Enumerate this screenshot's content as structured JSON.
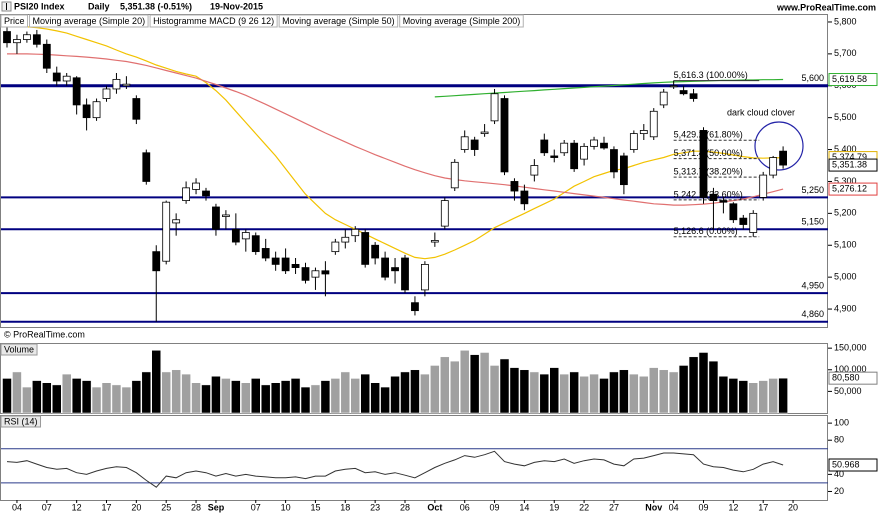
{
  "chart_data": [
    {
      "type": "candlestick",
      "title": "PSI20 Index",
      "period": "Daily",
      "last_quote": "5,351.38 (-0.51%)",
      "date": "19-Nov-2015",
      "source": "www.ProRealTime.com",
      "copyright": "© ProRealTime.com",
      "categories": [
        null,
        "04",
        null,
        null,
        "07",
        null,
        null,
        "12",
        null,
        null,
        "17",
        null,
        null,
        "20",
        null,
        null,
        "25",
        null,
        null,
        "28",
        null,
        "Sep",
        null,
        null,
        null,
        "07",
        null,
        null,
        "10",
        null,
        null,
        "15",
        null,
        null,
        "18",
        null,
        null,
        "23",
        null,
        null,
        "28",
        null,
        null,
        "Oct",
        null,
        null,
        "06",
        null,
        null,
        "09",
        null,
        null,
        "14",
        null,
        null,
        "19",
        null,
        null,
        "22",
        null,
        null,
        "27",
        null,
        null,
        null,
        "Nov",
        null,
        "04",
        null,
        null,
        "09",
        null,
        null,
        "12",
        null,
        null,
        "17",
        null,
        null,
        "20"
      ],
      "price": {
        "name": "Price",
        "up_color": "#ffffff",
        "down_color": "#000000",
        "open": [
          5770,
          5735,
          5745,
          5760,
          5730,
          5640,
          5615,
          5625,
          5540,
          5500,
          5560,
          5590,
          5600,
          5560,
          5390,
          5080,
          5050,
          5170,
          5240,
          5275,
          5270,
          5220,
          5190,
          5150,
          5120,
          5130,
          5090,
          5060,
          5060,
          5040,
          5030,
          5000,
          5020,
          5080,
          5110,
          5130,
          5140,
          5100,
          5060,
          5030,
          5060,
          4920,
          4960,
          5110,
          5160,
          5280,
          5400,
          5430,
          5450,
          5490,
          5560,
          5300,
          5270,
          5320,
          5430,
          5380,
          5390,
          5420,
          5370,
          5410,
          5420,
          5400,
          5380,
          5400,
          5450,
          5440,
          5540,
          5600,
          5585,
          5575,
          5460,
          5260,
          5240,
          5230,
          5185,
          5140,
          5250,
          5320,
          5395,
          null
        ],
        "high": [
          5790,
          5760,
          5770,
          5775,
          5745,
          5660,
          5640,
          5630,
          5560,
          5560,
          5600,
          5640,
          5630,
          5570,
          5400,
          5100,
          5240,
          5200,
          5300,
          5310,
          5280,
          5230,
          5210,
          5200,
          5150,
          5140,
          5120,
          5080,
          5090,
          5060,
          5045,
          5030,
          5050,
          5120,
          5150,
          5160,
          5150,
          5110,
          5080,
          5060,
          5070,
          4940,
          5050,
          5140,
          5250,
          5370,
          5460,
          5440,
          5480,
          5590,
          5570,
          5310,
          5290,
          5370,
          5450,
          5400,
          5430,
          5430,
          5420,
          5440,
          5440,
          5410,
          5390,
          5460,
          5480,
          5530,
          5590,
          5616.3,
          5600,
          5590,
          5470,
          5280,
          5250,
          5235,
          5195,
          5210,
          5330,
          5380,
          5410,
          null
        ],
        "low": [
          5720,
          5700,
          5735,
          5720,
          5640,
          5600,
          5600,
          5510,
          5460,
          5490,
          5550,
          5575,
          5590,
          5480,
          5290,
          4860,
          5040,
          5130,
          5230,
          5260,
          5240,
          5130,
          5150,
          5100,
          5080,
          5070,
          5050,
          5020,
          5010,
          5010,
          4980,
          4960,
          4940,
          5070,
          5090,
          5110,
          5030,
          5040,
          4990,
          4980,
          4950,
          4880,
          4940,
          5095,
          5150,
          5270,
          5390,
          5380,
          5440,
          5480,
          5320,
          5240,
          5210,
          5300,
          5380,
          5360,
          5380,
          5330,
          5350,
          5400,
          5400,
          5310,
          5260,
          5390,
          5430,
          5430,
          5530,
          5590,
          5570,
          5550,
          5230,
          5150,
          5200,
          5170,
          5150,
          5126.6,
          5240,
          5310,
          5340,
          null
        ],
        "close": [
          5735,
          5745,
          5760,
          5730,
          5655,
          5615,
          5630,
          5540,
          5500,
          5550,
          5590,
          5620,
          5605,
          5495,
          5300,
          5020,
          5235,
          5180,
          5280,
          5295,
          5255,
          5150,
          5195,
          5110,
          5140,
          5080,
          5060,
          5040,
          5020,
          5030,
          4990,
          5020,
          5010,
          5110,
          5125,
          5150,
          5040,
          5060,
          5000,
          5020,
          4960,
          4895,
          5040,
          5115,
          5240,
          5360,
          5440,
          5400,
          5455,
          5575,
          5330,
          5270,
          5230,
          5350,
          5390,
          5375,
          5420,
          5340,
          5410,
          5430,
          5405,
          5330,
          5290,
          5450,
          5460,
          5520,
          5580,
          5600,
          5575,
          5560,
          5250,
          5240,
          5235,
          5180,
          5165,
          5200,
          5320,
          5375,
          5351.38,
          null
        ]
      },
      "series": [
        {
          "name": "Moving average (Simple 20)",
          "color": "#f2c200",
          "values": [
            5790,
            5788,
            5785,
            5782,
            5778,
            5772,
            5765,
            5755,
            5745,
            5735,
            5725,
            5712,
            5700,
            5690,
            5678,
            5665,
            5655,
            5645,
            5637,
            5630,
            5610,
            5585,
            5555,
            5520,
            5485,
            5450,
            5415,
            5380,
            5340,
            5300,
            5260,
            5230,
            5200,
            5180,
            5165,
            5150,
            5135,
            5120,
            5105,
            5090,
            5075,
            5062,
            5058,
            5062,
            5072,
            5085,
            5100,
            5115,
            5135,
            5155,
            5170,
            5185,
            5200,
            5215,
            5230,
            5245,
            5265,
            5285,
            5300,
            5315,
            5325,
            5335,
            5340,
            5350,
            5360,
            5368,
            5375,
            5385,
            5390,
            5395,
            5395,
            5392,
            5388,
            5383,
            5378,
            5374,
            5373,
            5374,
            5374.79,
            null
          ]
        },
        {
          "name": "Moving average (Simple 50)",
          "color": "#e07070",
          "values": [
            5700,
            5700,
            5700,
            5699,
            5698,
            5696,
            5694,
            5692,
            5690,
            5687,
            5684,
            5680,
            5676,
            5670,
            5664,
            5656,
            5648,
            5640,
            5632,
            5624,
            5614,
            5604,
            5593,
            5582,
            5570,
            5556,
            5542,
            5527,
            5512,
            5497,
            5482,
            5467,
            5452,
            5438,
            5424,
            5410,
            5397,
            5384,
            5372,
            5360,
            5348,
            5337,
            5327,
            5318,
            5311,
            5306,
            5302,
            5299,
            5296,
            5293,
            5290,
            5286,
            5282,
            5278,
            5274,
            5270,
            5266,
            5262,
            5258,
            5254,
            5250,
            5246,
            5242,
            5238,
            5234,
            5230,
            5228,
            5226,
            5226,
            5227,
            5229,
            5232,
            5236,
            5240,
            5245,
            5252,
            5260,
            5268,
            5276.12,
            null
          ]
        },
        {
          "name": "Moving average (Simple 200)",
          "color": "#30b030",
          "values": [
            null,
            null,
            null,
            null,
            null,
            null,
            null,
            null,
            null,
            null,
            null,
            null,
            null,
            null,
            null,
            null,
            null,
            null,
            null,
            null,
            null,
            null,
            null,
            null,
            null,
            null,
            null,
            null,
            null,
            null,
            null,
            null,
            null,
            null,
            null,
            null,
            null,
            null,
            null,
            null,
            null,
            null,
            null,
            5565,
            5567,
            5569,
            5571,
            5573,
            5575,
            5577,
            5579,
            5581,
            5583,
            5585,
            5587,
            5589,
            5591,
            5593,
            5595,
            5597,
            5599,
            5601,
            5603,
            5605,
            5607,
            5609,
            5611,
            5612,
            5613,
            5614,
            5615,
            5616,
            5617,
            5617,
            5618,
            5618,
            5619,
            5619,
            5619.58,
            null
          ]
        }
      ],
      "extra_legend": "Histogramme MACD (9 26 12)",
      "ylim": [
        4850,
        5825
      ],
      "yticks": [
        {
          "value": 5800,
          "label": "5,800"
        },
        {
          "value": 5700,
          "label": "5,700"
        },
        {
          "value": 5600,
          "label": "5,600"
        },
        {
          "value": 5500,
          "label": "5,500"
        },
        {
          "value": 5400,
          "label": "5,400"
        },
        {
          "value": 5300,
          "label": "5,300"
        },
        {
          "value": 5200,
          "label": "5,200"
        },
        {
          "value": 5100,
          "label": "5,100"
        },
        {
          "value": 5000,
          "label": "5,000"
        },
        {
          "value": 4900,
          "label": "4,900"
        }
      ],
      "levels": [
        {
          "value": 5600,
          "label": "5,600"
        },
        {
          "value": 5250,
          "label": "5,250"
        },
        {
          "value": 5150,
          "label": "5,150"
        },
        {
          "value": 4950,
          "label": "4,950"
        },
        {
          "value": 4860,
          "label": "4,860"
        }
      ],
      "level_color": "#000080",
      "fib_levels": [
        {
          "value": 5616.3,
          "label": "5,616.3 (100.00%)"
        },
        {
          "value": 5429.2,
          "label": "5,429.2 (61.80%)"
        },
        {
          "value": 5371.4,
          "label": "5,371.4 (50.00%)"
        },
        {
          "value": 5313.7,
          "label": "5,313.7 (38.20%)"
        },
        {
          "value": 5242.1,
          "label": "5,242.1 (23.60%)"
        },
        {
          "value": 5126.6,
          "label": "5,126.6 (0.00%)"
        }
      ],
      "tags": [
        {
          "value": 5619.58,
          "label": "5,619.58",
          "color": "#30b030"
        },
        {
          "value": 5374.79,
          "label": "5,374.79",
          "color": "#e0b000"
        },
        {
          "value": 5351.38,
          "label": "5,351.38",
          "color": "#000000"
        },
        {
          "value": 5276.12,
          "label": "5,276.12",
          "color": "#e04040"
        }
      ],
      "annotation": "dark cloud clover"
    },
    {
      "type": "bar",
      "title": "Volume",
      "up_color": "#a0a0a0",
      "down_color": "#000000",
      "values": [
        80000,
        95000,
        60000,
        75000,
        70000,
        65000,
        90000,
        80000,
        75000,
        60000,
        70000,
        65000,
        60000,
        75000,
        95000,
        145000,
        95000,
        100000,
        90000,
        70000,
        65000,
        85000,
        80000,
        75000,
        70000,
        80000,
        65000,
        70000,
        75000,
        80000,
        60000,
        65000,
        75000,
        80000,
        95000,
        80000,
        90000,
        70000,
        60000,
        85000,
        95000,
        100000,
        90000,
        110000,
        130000,
        120000,
        145000,
        135000,
        140000,
        110000,
        125000,
        105000,
        100000,
        95000,
        90000,
        105000,
        90000,
        95000,
        85000,
        90000,
        80000,
        95000,
        100000,
        90000,
        85000,
        105000,
        100000,
        95000,
        110000,
        130000,
        140000,
        120000,
        85000,
        80000,
        75000,
        70000,
        75000,
        80000,
        80580,
        null
      ],
      "ylim": [
        0,
        155000
      ],
      "yticks": [
        {
          "value": 150000,
          "label": "150,000"
        },
        {
          "value": 100000,
          "label": "100,000"
        },
        {
          "value": 50000,
          "label": "50,000"
        }
      ],
      "tags": [
        {
          "value": 80580,
          "label": "80,580",
          "color": "#808080"
        }
      ]
    },
    {
      "type": "line",
      "title": "RSI (14)",
      "color": "#333333",
      "values": [
        55,
        54,
        56,
        52,
        48,
        46,
        47,
        42,
        40,
        44,
        47,
        49,
        48,
        42,
        33,
        25,
        38,
        36,
        42,
        44,
        42,
        38,
        41,
        38,
        40,
        38,
        37,
        36,
        36,
        37,
        35,
        38,
        38,
        44,
        46,
        47,
        42,
        43,
        40,
        42,
        39,
        36,
        42,
        48,
        53,
        57,
        62,
        60,
        63,
        67,
        55,
        52,
        50,
        54,
        56,
        55,
        58,
        53,
        56,
        58,
        57,
        52,
        50,
        58,
        59,
        62,
        65,
        65,
        64,
        63,
        52,
        49,
        48,
        45,
        43,
        46,
        52,
        55,
        50.968,
        null
      ],
      "ylim": [
        10,
        106
      ],
      "yticks": [
        100,
        80,
        40,
        20
      ],
      "bands": [
        70,
        30
      ],
      "band_color": "#2a3a8a",
      "tags": [
        {
          "value": 50.968,
          "label": "50.968",
          "color": "#000000"
        }
      ]
    }
  ]
}
